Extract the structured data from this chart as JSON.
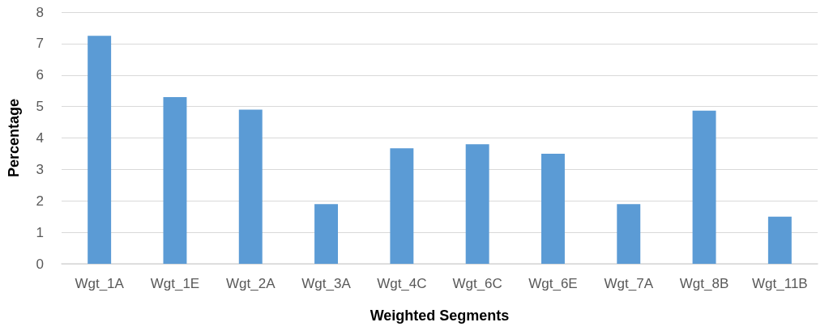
{
  "chart_data": {
    "type": "bar",
    "xlabel": "Weighted Segments",
    "ylabel": "Percentage",
    "categories": [
      "Wgt_1A",
      "Wgt_1E",
      "Wgt_2A",
      "Wgt_3A",
      "Wgt_4C",
      "Wgt_6C",
      "Wgt_6E",
      "Wgt_7A",
      "Wgt_8B",
      "Wgt_11B"
    ],
    "values": [
      7.25,
      5.3,
      4.9,
      1.9,
      3.67,
      3.8,
      3.5,
      1.9,
      4.87,
      1.5
    ],
    "color": "#5b9bd5",
    "ylim": [
      0,
      8
    ],
    "yticks": [
      0,
      1,
      2,
      3,
      4,
      5,
      6,
      7,
      8
    ],
    "grid": "y"
  }
}
